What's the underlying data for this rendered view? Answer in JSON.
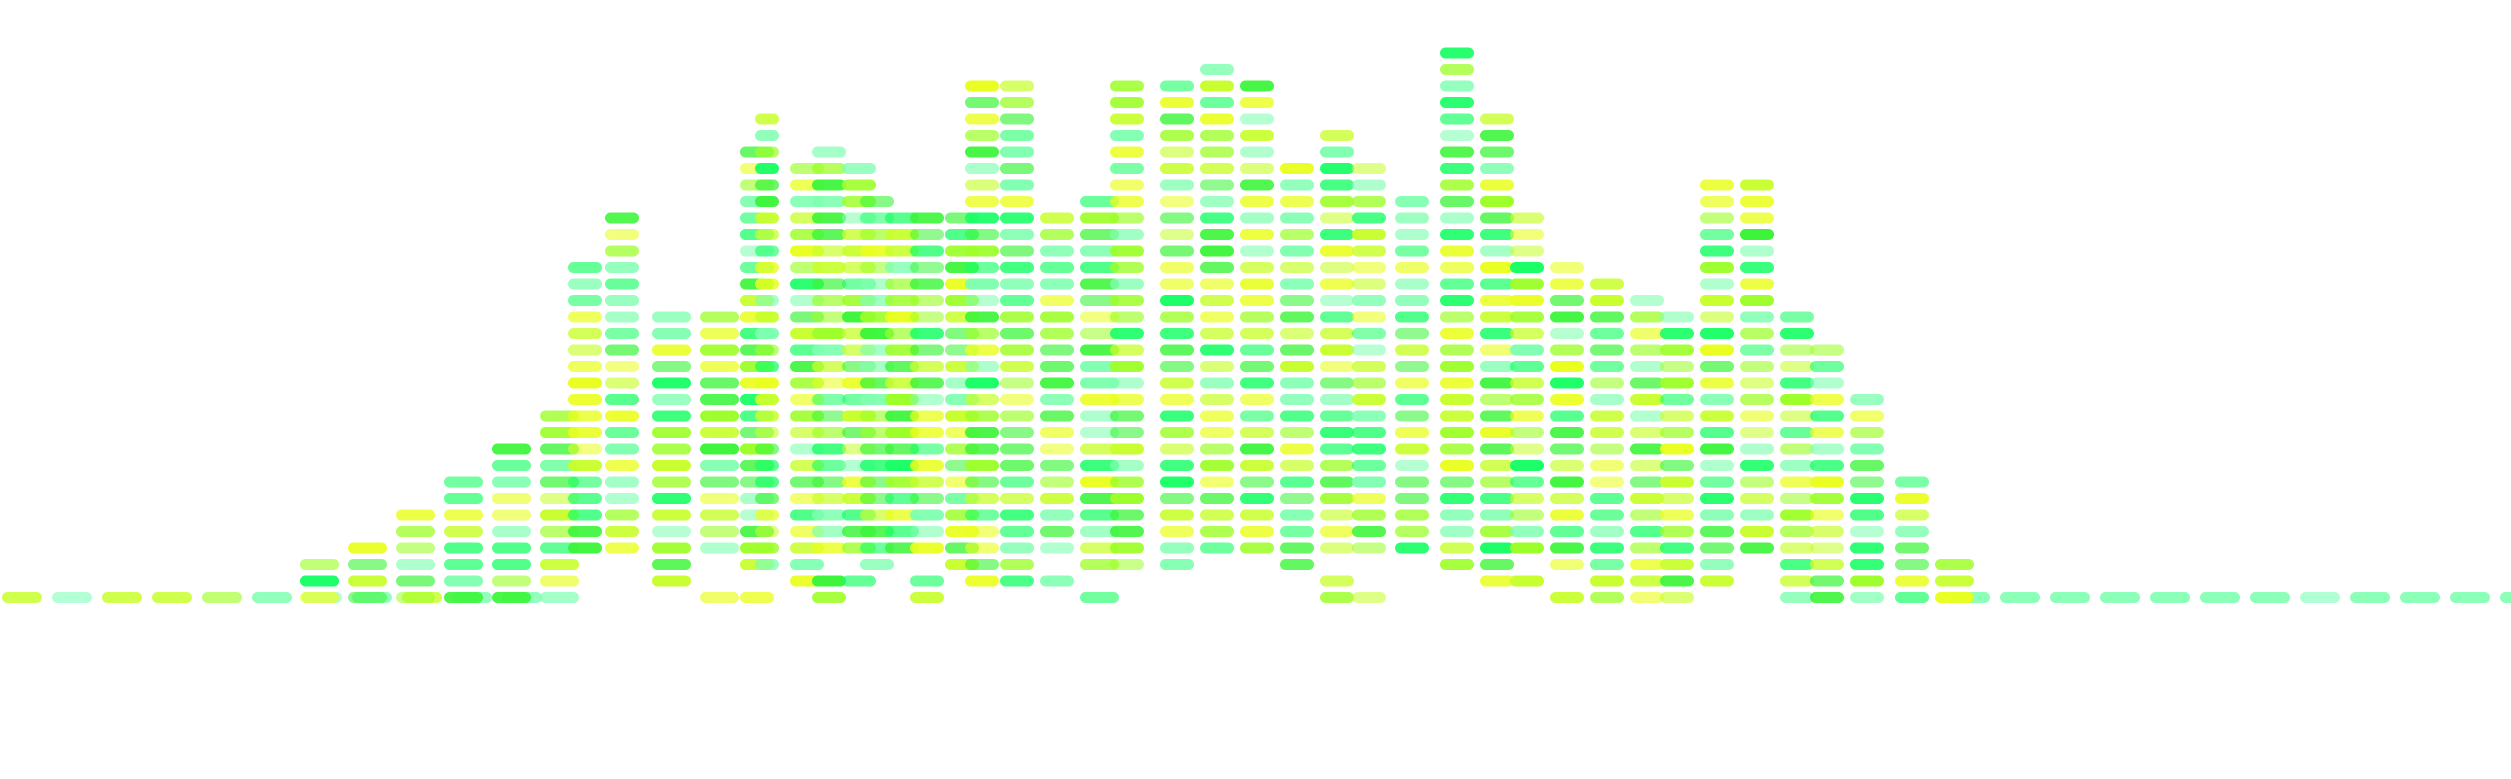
{
  "artwork": {
    "subject": "city-skyline",
    "style": "equalizer-bars",
    "background_color": "#ffffff",
    "palette": [
      "#c8ff2e",
      "#9dff2a",
      "#3cf53a",
      "#1aff66",
      "#7fffb0",
      "#e9ff1f",
      "#ffffff"
    ]
  }
}
